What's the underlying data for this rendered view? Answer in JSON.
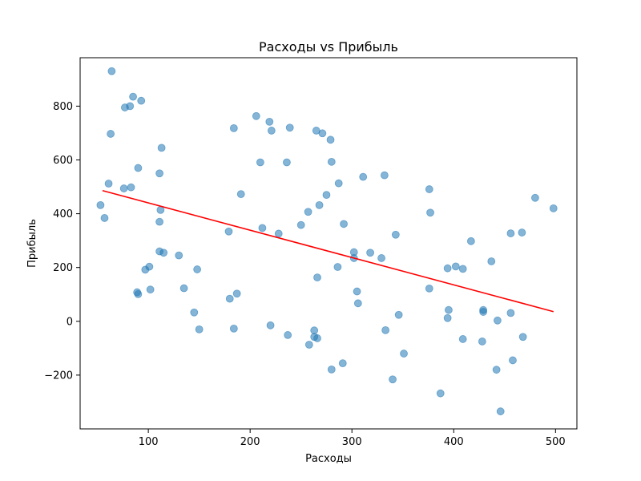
{
  "chart_data": {
    "type": "scatter",
    "title": "Расходы vs Прибыль",
    "xlabel": "Расходы",
    "ylabel": "Прибыль",
    "xlim": [
      33,
      521
    ],
    "ylim": [
      -400,
      980
    ],
    "xticks": [
      100,
      200,
      300,
      400,
      500
    ],
    "yticks": [
      -200,
      0,
      200,
      400,
      600,
      800
    ],
    "grid": false,
    "colors": {
      "points": "#1f77b4",
      "trend": "#ff0000"
    },
    "points": [
      [
        64,
        930
      ],
      [
        85,
        835
      ],
      [
        93,
        820
      ],
      [
        77,
        795
      ],
      [
        82,
        800
      ],
      [
        63,
        697
      ],
      [
        113,
        645
      ],
      [
        90,
        570
      ],
      [
        111,
        550
      ],
      [
        61,
        512
      ],
      [
        76,
        494
      ],
      [
        83,
        498
      ],
      [
        53,
        432
      ],
      [
        57,
        384
      ],
      [
        112,
        414
      ],
      [
        111,
        370
      ],
      [
        206,
        763
      ],
      [
        219,
        742
      ],
      [
        239,
        720
      ],
      [
        184,
        718
      ],
      [
        221,
        709
      ],
      [
        265,
        709
      ],
      [
        271,
        699
      ],
      [
        279,
        675
      ],
      [
        210,
        591
      ],
      [
        236,
        591
      ],
      [
        280,
        593
      ],
      [
        191,
        473
      ],
      [
        287,
        513
      ],
      [
        275,
        470
      ],
      [
        311,
        537
      ],
      [
        332,
        543
      ],
      [
        376,
        491
      ],
      [
        377,
        404
      ],
      [
        268,
        432
      ],
      [
        257,
        407
      ],
      [
        250,
        358
      ],
      [
        292,
        362
      ],
      [
        212,
        347
      ],
      [
        228,
        326
      ],
      [
        179,
        334
      ],
      [
        343,
        322
      ],
      [
        417,
        298
      ],
      [
        480,
        459
      ],
      [
        498,
        420
      ],
      [
        456,
        327
      ],
      [
        467,
        330
      ],
      [
        111,
        260
      ],
      [
        115,
        255
      ],
      [
        130,
        245
      ],
      [
        101,
        203
      ],
      [
        97,
        192
      ],
      [
        148,
        193
      ],
      [
        135,
        123
      ],
      [
        102,
        118
      ],
      [
        89,
        108
      ],
      [
        90,
        101
      ],
      [
        302,
        257
      ],
      [
        318,
        255
      ],
      [
        302,
        235
      ],
      [
        329,
        235
      ],
      [
        437,
        223
      ],
      [
        394,
        197
      ],
      [
        402,
        204
      ],
      [
        409,
        195
      ],
      [
        286,
        202
      ],
      [
        266,
        163
      ],
      [
        305,
        111
      ],
      [
        187,
        103
      ],
      [
        180,
        84
      ],
      [
        306,
        67
      ],
      [
        376,
        122
      ],
      [
        145,
        33
      ],
      [
        150,
        -30
      ],
      [
        184,
        -27
      ],
      [
        220,
        -15
      ],
      [
        237,
        -51
      ],
      [
        263,
        -34
      ],
      [
        263,
        -58
      ],
      [
        266,
        -63
      ],
      [
        258,
        -87
      ],
      [
        333,
        -33
      ],
      [
        346,
        24
      ],
      [
        395,
        42
      ],
      [
        394,
        12
      ],
      [
        429,
        42
      ],
      [
        429,
        35
      ],
      [
        456,
        31
      ],
      [
        443,
        3
      ],
      [
        409,
        -66
      ],
      [
        428,
        -75
      ],
      [
        468,
        -58
      ],
      [
        351,
        -120
      ],
      [
        458,
        -145
      ],
      [
        280,
        -179
      ],
      [
        291,
        -156
      ],
      [
        340,
        -216
      ],
      [
        442,
        -180
      ],
      [
        387,
        -268
      ],
      [
        446,
        -335
      ]
    ],
    "trend_line": {
      "x": [
        55,
        498
      ],
      "y": [
        486,
        36
      ]
    }
  }
}
